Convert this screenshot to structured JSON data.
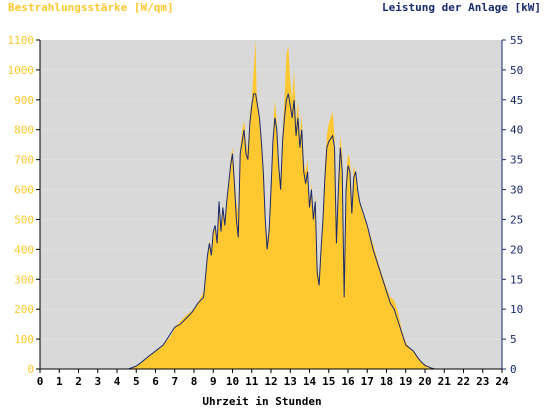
{
  "colors": {
    "irradiance": "#ffc830",
    "power": "#1a2a6e",
    "plot_background": "#d9d9d9",
    "left_axis_text": "#ffc830",
    "right_axis_text": "#1a2a6e",
    "x_axis_text": "#000000",
    "grid": "#ffffff"
  },
  "chart_data": {
    "type": "area",
    "left_title": "Bestrahlungsstärke [W/qm]",
    "right_title": "Leistung der Anlage [kW]",
    "xlabel": "Uhrzeit in Stunden",
    "xlim": [
      0,
      24
    ],
    "ylim_left": [
      0,
      1100
    ],
    "ylim_right": [
      0,
      55
    ],
    "x_ticks": [
      "0",
      "1",
      "2",
      "3",
      "4",
      "5",
      "6",
      "7",
      "8",
      "9",
      "10",
      "11",
      "12",
      "13",
      "14",
      "15",
      "16",
      "17",
      "18",
      "19",
      "20",
      "21",
      "22",
      "23",
      "24"
    ],
    "y_left_ticks": [
      "0",
      "100",
      "200",
      "300",
      "400",
      "500",
      "600",
      "700",
      "800",
      "900",
      "1000",
      "1100"
    ],
    "y_right_ticks": [
      "0",
      "5",
      "10",
      "15",
      "20",
      "25",
      "30",
      "35",
      "40",
      "45",
      "50",
      "55"
    ],
    "grid": true,
    "series": [
      {
        "name": "Bestrahlungsstärke",
        "axis": "left",
        "style": "filled-area",
        "points": [
          [
            0,
            0
          ],
          [
            4.6,
            0
          ],
          [
            5.0,
            10
          ],
          [
            5.3,
            25
          ],
          [
            5.6,
            40
          ],
          [
            6.0,
            60
          ],
          [
            6.4,
            80
          ],
          [
            6.8,
            110
          ],
          [
            7.0,
            140
          ],
          [
            7.3,
            160
          ],
          [
            7.6,
            180
          ],
          [
            7.9,
            195
          ],
          [
            8.2,
            220
          ],
          [
            8.5,
            260
          ],
          [
            8.7,
            380
          ],
          [
            8.8,
            430
          ],
          [
            8.9,
            400
          ],
          [
            9.0,
            460
          ],
          [
            9.1,
            480
          ],
          [
            9.2,
            440
          ],
          [
            9.3,
            560
          ],
          [
            9.4,
            480
          ],
          [
            9.5,
            550
          ],
          [
            9.6,
            500
          ],
          [
            9.7,
            560
          ],
          [
            9.8,
            620
          ],
          [
            9.9,
            700
          ],
          [
            10.0,
            740
          ],
          [
            10.1,
            650
          ],
          [
            10.2,
            560
          ],
          [
            10.3,
            520
          ],
          [
            10.4,
            740
          ],
          [
            10.5,
            800
          ],
          [
            10.6,
            830
          ],
          [
            10.7,
            760
          ],
          [
            10.8,
            730
          ],
          [
            10.9,
            850
          ],
          [
            11.0,
            900
          ],
          [
            11.1,
            1000
          ],
          [
            11.2,
            1100
          ],
          [
            11.25,
            930
          ],
          [
            11.3,
            900
          ],
          [
            11.4,
            850
          ],
          [
            11.5,
            770
          ],
          [
            11.6,
            670
          ],
          [
            11.7,
            520
          ],
          [
            11.8,
            430
          ],
          [
            11.9,
            480
          ],
          [
            12.0,
            600
          ],
          [
            12.1,
            780
          ],
          [
            12.2,
            900
          ],
          [
            12.3,
            830
          ],
          [
            12.4,
            700
          ],
          [
            12.5,
            620
          ],
          [
            12.6,
            790
          ],
          [
            12.7,
            900
          ],
          [
            12.8,
            1050
          ],
          [
            12.9,
            1080
          ],
          [
            13.0,
            960
          ],
          [
            13.1,
            900
          ],
          [
            13.2,
            1000
          ],
          [
            13.3,
            820
          ],
          [
            13.4,
            900
          ],
          [
            13.5,
            780
          ],
          [
            13.6,
            850
          ],
          [
            13.7,
            690
          ],
          [
            13.8,
            660
          ],
          [
            13.9,
            700
          ],
          [
            14.0,
            560
          ],
          [
            14.1,
            620
          ],
          [
            14.2,
            520
          ],
          [
            14.3,
            580
          ],
          [
            14.4,
            350
          ],
          [
            14.5,
            300
          ],
          [
            14.6,
            420
          ],
          [
            14.7,
            520
          ],
          [
            14.8,
            680
          ],
          [
            14.9,
            780
          ],
          [
            15.0,
            820
          ],
          [
            15.1,
            840
          ],
          [
            15.2,
            860
          ],
          [
            15.3,
            780
          ],
          [
            15.4,
            470
          ],
          [
            15.5,
            650
          ],
          [
            15.6,
            780
          ],
          [
            15.7,
            720
          ],
          [
            15.8,
            350
          ],
          [
            15.9,
            640
          ],
          [
            16.0,
            720
          ],
          [
            16.1,
            700
          ],
          [
            16.2,
            560
          ],
          [
            16.3,
            680
          ],
          [
            16.4,
            650
          ],
          [
            16.5,
            600
          ],
          [
            16.6,
            560
          ],
          [
            16.7,
            540
          ],
          [
            16.8,
            520
          ],
          [
            17.0,
            480
          ],
          [
            17.3,
            420
          ],
          [
            17.6,
            350
          ],
          [
            17.9,
            290
          ],
          [
            18.2,
            240
          ],
          [
            18.4,
            230
          ],
          [
            18.6,
            190
          ],
          [
            18.8,
            130
          ],
          [
            19.0,
            90
          ],
          [
            19.2,
            70
          ],
          [
            19.4,
            60
          ],
          [
            19.6,
            40
          ],
          [
            19.8,
            25
          ],
          [
            20.0,
            15
          ],
          [
            20.3,
            5
          ],
          [
            20.5,
            0
          ],
          [
            24,
            0
          ]
        ]
      },
      {
        "name": "Leistung der Anlage",
        "axis": "right",
        "style": "line",
        "points": [
          [
            0,
            0
          ],
          [
            4.6,
            0
          ],
          [
            5.0,
            0.5
          ],
          [
            5.3,
            1.2
          ],
          [
            5.6,
            2
          ],
          [
            6.0,
            3
          ],
          [
            6.4,
            4
          ],
          [
            6.8,
            6
          ],
          [
            7.0,
            7
          ],
          [
            7.3,
            7.5
          ],
          [
            7.6,
            8.5
          ],
          [
            7.9,
            9.5
          ],
          [
            8.2,
            11
          ],
          [
            8.5,
            12
          ],
          [
            8.7,
            19
          ],
          [
            8.8,
            21
          ],
          [
            8.9,
            19
          ],
          [
            9.0,
            23
          ],
          [
            9.1,
            24
          ],
          [
            9.2,
            21
          ],
          [
            9.3,
            28
          ],
          [
            9.4,
            23
          ],
          [
            9.5,
            27
          ],
          [
            9.6,
            24
          ],
          [
            9.7,
            28
          ],
          [
            9.8,
            31
          ],
          [
            9.9,
            34
          ],
          [
            10.0,
            36
          ],
          [
            10.1,
            31
          ],
          [
            10.2,
            25
          ],
          [
            10.3,
            22
          ],
          [
            10.4,
            36
          ],
          [
            10.5,
            38
          ],
          [
            10.6,
            40
          ],
          [
            10.7,
            36
          ],
          [
            10.8,
            35
          ],
          [
            10.9,
            41
          ],
          [
            11.0,
            44
          ],
          [
            11.1,
            46
          ],
          [
            11.2,
            46
          ],
          [
            11.25,
            45
          ],
          [
            11.3,
            44
          ],
          [
            11.4,
            42
          ],
          [
            11.5,
            38
          ],
          [
            11.6,
            33
          ],
          [
            11.7,
            25
          ],
          [
            11.8,
            20
          ],
          [
            11.9,
            23
          ],
          [
            12.0,
            30
          ],
          [
            12.1,
            38
          ],
          [
            12.2,
            42
          ],
          [
            12.3,
            40
          ],
          [
            12.4,
            34
          ],
          [
            12.5,
            30
          ],
          [
            12.6,
            38
          ],
          [
            12.7,
            42
          ],
          [
            12.8,
            45
          ],
          [
            12.9,
            46
          ],
          [
            13.0,
            44
          ],
          [
            13.1,
            42
          ],
          [
            13.2,
            45
          ],
          [
            13.3,
            39
          ],
          [
            13.4,
            42
          ],
          [
            13.5,
            37
          ],
          [
            13.6,
            40
          ],
          [
            13.7,
            33
          ],
          [
            13.8,
            31
          ],
          [
            13.9,
            33
          ],
          [
            14.0,
            27
          ],
          [
            14.1,
            30
          ],
          [
            14.2,
            25
          ],
          [
            14.3,
            28
          ],
          [
            14.4,
            16
          ],
          [
            14.5,
            14
          ],
          [
            14.6,
            20
          ],
          [
            14.7,
            25
          ],
          [
            14.8,
            32
          ],
          [
            14.9,
            37
          ],
          [
            15.0,
            38
          ],
          [
            15.1,
            38.5
          ],
          [
            15.2,
            39
          ],
          [
            15.3,
            37
          ],
          [
            15.4,
            21
          ],
          [
            15.5,
            30
          ],
          [
            15.6,
            37
          ],
          [
            15.7,
            33
          ],
          [
            15.8,
            12
          ],
          [
            15.9,
            30
          ],
          [
            16.0,
            34
          ],
          [
            16.1,
            33
          ],
          [
            16.2,
            26
          ],
          [
            16.3,
            32
          ],
          [
            16.4,
            33
          ],
          [
            16.5,
            30
          ],
          [
            16.6,
            28
          ],
          [
            16.7,
            27
          ],
          [
            16.8,
            26
          ],
          [
            17.0,
            24
          ],
          [
            17.3,
            20
          ],
          [
            17.6,
            17
          ],
          [
            17.9,
            14
          ],
          [
            18.2,
            11
          ],
          [
            18.4,
            10
          ],
          [
            18.6,
            8
          ],
          [
            18.8,
            6
          ],
          [
            19.0,
            4
          ],
          [
            19.2,
            3.5
          ],
          [
            19.4,
            3
          ],
          [
            19.6,
            2
          ],
          [
            19.8,
            1.2
          ],
          [
            20.0,
            0.6
          ],
          [
            20.3,
            0.2
          ],
          [
            20.5,
            0
          ],
          [
            24,
            0
          ]
        ]
      }
    ]
  }
}
